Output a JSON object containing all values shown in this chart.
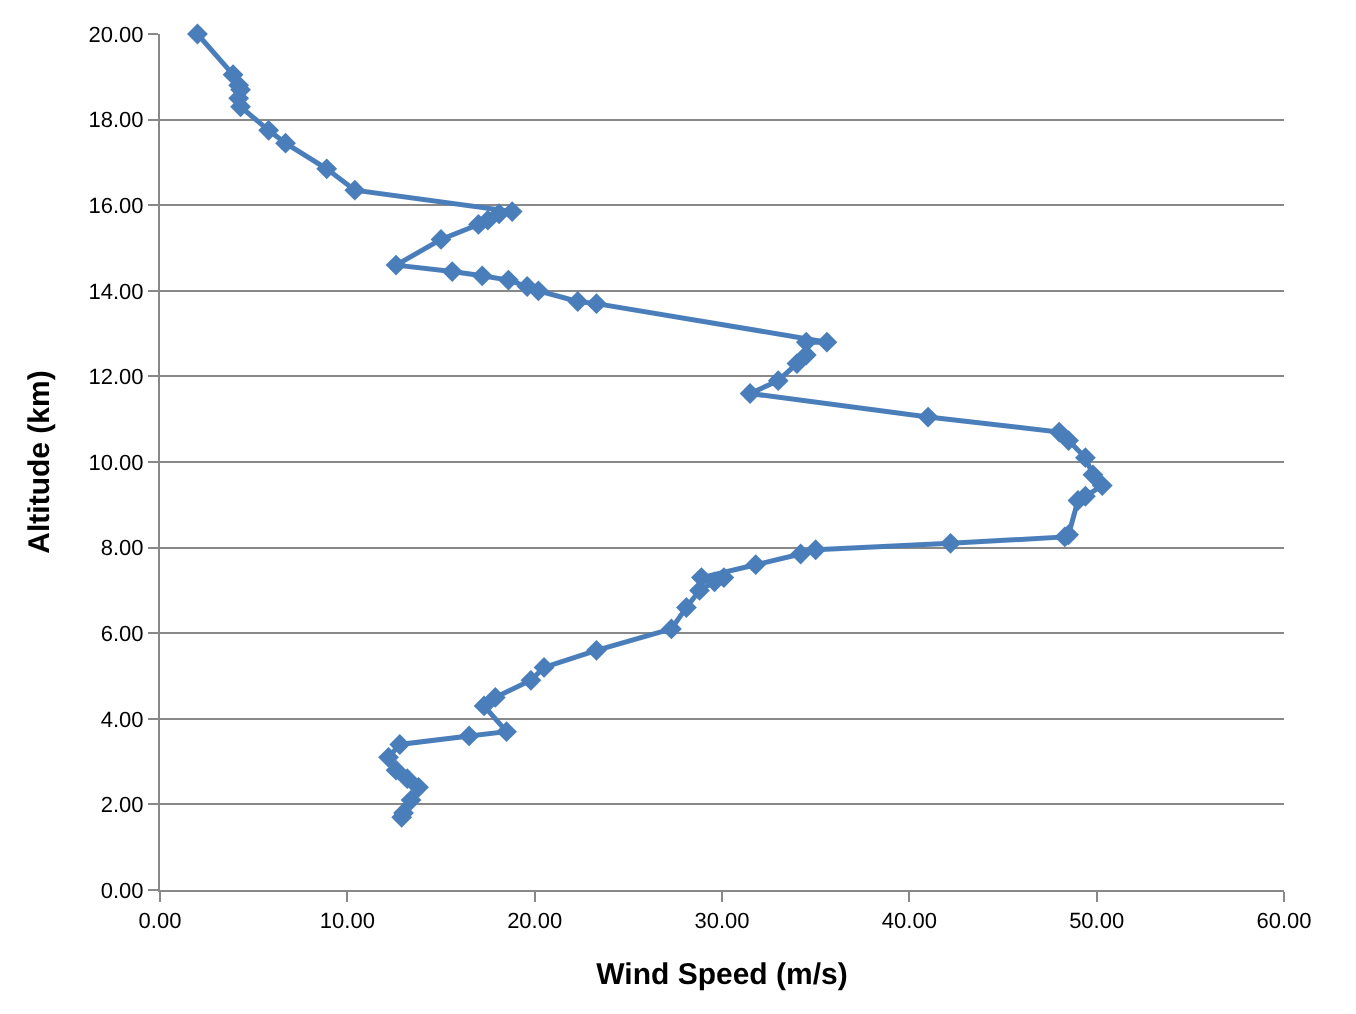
{
  "chart_data": {
    "type": "line",
    "xlabel": "Wind Speed (m/s)",
    "ylabel": "Altitude (km)",
    "x": [
      12.9,
      13.0,
      13.4,
      13.8,
      13.2,
      12.6,
      12.2,
      12.8,
      16.5,
      18.5,
      17.3,
      17.9,
      19.8,
      20.5,
      23.3,
      27.3,
      28.1,
      28.8,
      29.6,
      30.1,
      28.9,
      31.8,
      34.2,
      35.0,
      42.2,
      48.3,
      48.5,
      49.0,
      49.4,
      50.3,
      49.8,
      49.4,
      48.5,
      48.0,
      41.0,
      31.5,
      33.0,
      34.0,
      34.5,
      34.5,
      35.6,
      23.3,
      22.3,
      20.2,
      19.6,
      18.6,
      17.2,
      15.6,
      12.6,
      15.0,
      17.0,
      17.5,
      18.1,
      18.8,
      10.4,
      8.9,
      6.7,
      5.8,
      4.3,
      4.2,
      4.3,
      4.2,
      3.9,
      2.0
    ],
    "series": [
      {
        "color": "#4a7ebb",
        "values": [
          1.7,
          1.8,
          2.1,
          2.4,
          2.6,
          2.8,
          3.1,
          3.4,
          3.6,
          3.7,
          4.3,
          4.5,
          4.9,
          5.2,
          5.6,
          6.1,
          6.6,
          7.0,
          7.2,
          7.3,
          7.3,
          7.6,
          7.85,
          7.95,
          8.1,
          8.25,
          8.3,
          9.1,
          9.2,
          9.45,
          9.7,
          10.1,
          10.5,
          10.7,
          11.05,
          11.6,
          11.9,
          12.3,
          12.5,
          12.8,
          12.8,
          13.7,
          13.75,
          14.0,
          14.1,
          14.25,
          14.35,
          14.45,
          14.6,
          15.2,
          15.55,
          15.65,
          15.8,
          15.85,
          16.35,
          16.85,
          17.45,
          17.75,
          18.3,
          18.5,
          18.7,
          18.8,
          19.05,
          20.0
        ]
      }
    ],
    "xlim": [
      0,
      60
    ],
    "ylim": [
      0,
      20
    ],
    "xticks": [
      {
        "value": 0,
        "label": "0.00"
      },
      {
        "value": 10,
        "label": "10.00"
      },
      {
        "value": 20,
        "label": "20.00"
      },
      {
        "value": 30,
        "label": "30.00"
      },
      {
        "value": 40,
        "label": "40.00"
      },
      {
        "value": 50,
        "label": "50.00"
      },
      {
        "value": 60,
        "label": "60.00"
      }
    ],
    "yticks": [
      {
        "value": 0,
        "label": "0.00"
      },
      {
        "value": 2,
        "label": "2.00"
      },
      {
        "value": 4,
        "label": "4.00"
      },
      {
        "value": 6,
        "label": "6.00"
      },
      {
        "value": 8,
        "label": "8.00"
      },
      {
        "value": 10,
        "label": "10.00"
      },
      {
        "value": 12,
        "label": "12.00"
      },
      {
        "value": 14,
        "label": "14.00"
      },
      {
        "value": 16,
        "label": "16.00"
      },
      {
        "value": 18,
        "label": "18.00"
      },
      {
        "value": 20,
        "label": "20.00"
      }
    ],
    "grid": "y",
    "marker": "diamond",
    "line_style": "solid"
  }
}
